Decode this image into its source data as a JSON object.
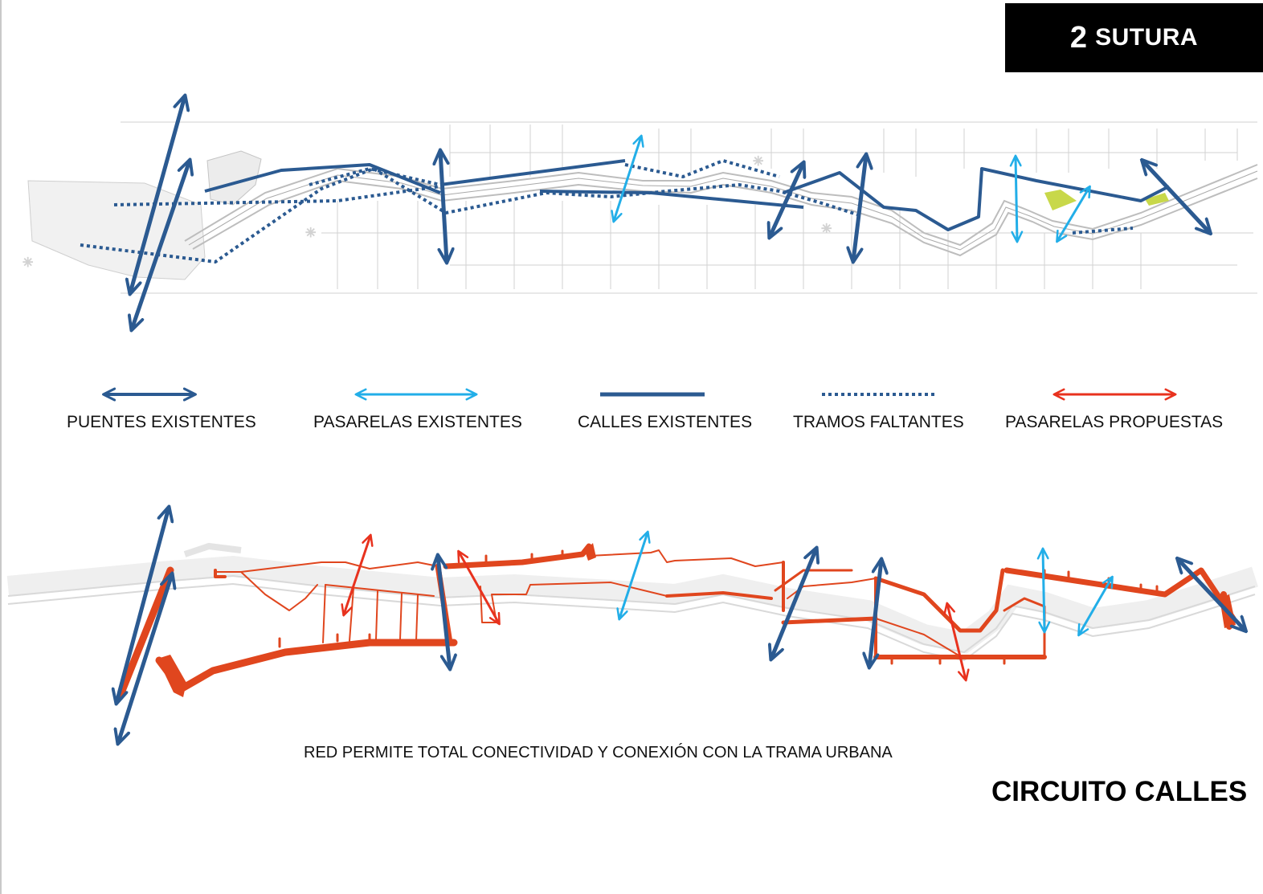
{
  "header": {
    "number": "2",
    "title": "SUTURA"
  },
  "legend": [
    {
      "label": "PUENTES EXISTENTES",
      "style": "double-arrow",
      "color": "#2b5a91"
    },
    {
      "label": "PASARELAS EXISTENTES",
      "style": "double-arrow",
      "color": "#22aee8"
    },
    {
      "label": "CALLES EXISTENTES",
      "style": "solid-line",
      "color": "#2b5a91"
    },
    {
      "label": "TRAMOS FALTANTES",
      "style": "dotted-line",
      "color": "#2b5a91"
    },
    {
      "label": "PASARELAS PROPUESTAS",
      "style": "double-arrow",
      "color": "#e8321e"
    }
  ],
  "caption": "RED  PERMITE TOTAL CONECTIVIDAD Y CONEXIÓN CON LA TRAMA URBANA",
  "section_title": "CIRCUITO CALLES",
  "colors": {
    "bridge": "#2b5a91",
    "footbridge": "#22aee8",
    "proposed": "#e8321e",
    "street_network": "#e0461e",
    "base_map": "#d8d8d8",
    "park": "#c8d84a"
  }
}
